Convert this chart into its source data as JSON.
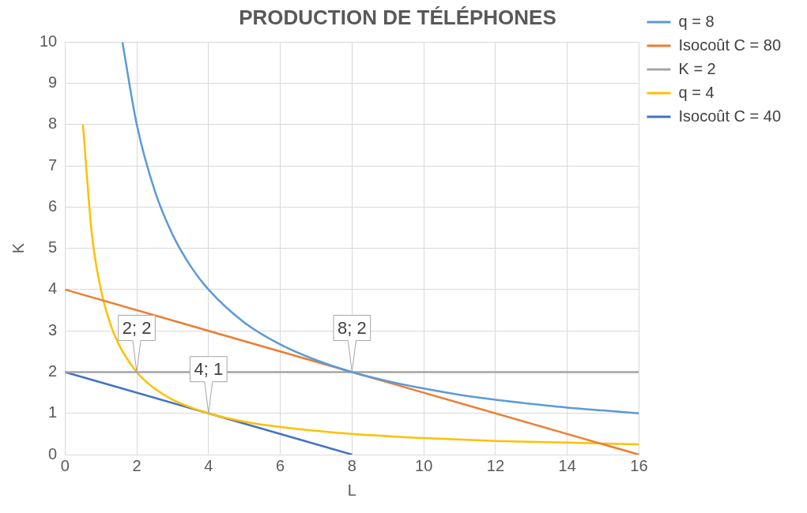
{
  "chart_data": {
    "type": "line",
    "title": "PRODUCTION DE TÉLÉPHONES",
    "xlabel": "L",
    "ylabel": "K",
    "xlim": [
      0,
      16
    ],
    "xticks": [
      0,
      2,
      4,
      6,
      8,
      10,
      12,
      14,
      16
    ],
    "ylim": [
      0,
      10
    ],
    "yticks": [
      0,
      1,
      2,
      3,
      4,
      5,
      6,
      7,
      8,
      9,
      10
    ],
    "grid": true,
    "legend": "top right",
    "marker": "none",
    "line_style": "solid",
    "series": [
      {
        "name": "q = 8",
        "color": "#5b9bd5",
        "x": [
          1.6,
          2,
          2.5,
          3,
          3.5,
          4,
          5,
          6,
          7,
          8,
          9,
          10,
          11,
          12,
          13,
          14,
          15,
          16
        ],
        "values": [
          10,
          8,
          6.4,
          5.33,
          4.57,
          4,
          3.2,
          2.67,
          2.29,
          2,
          1.78,
          1.6,
          1.45,
          1.33,
          1.23,
          1.14,
          1.07,
          1
        ]
      },
      {
        "name": "Isocoût C = 80",
        "color": "#ed7d31",
        "x": [
          0,
          16
        ],
        "values": [
          4,
          0
        ]
      },
      {
        "name": "K = 2",
        "color": "#a5a5a5",
        "x": [
          0,
          16
        ],
        "values": [
          2,
          2
        ]
      },
      {
        "name": "q = 4",
        "color": "#ffc000",
        "x": [
          0.5,
          0.75,
          1,
          1.25,
          1.5,
          2,
          2.5,
          3,
          4,
          5,
          6,
          8,
          10,
          12,
          14,
          16
        ],
        "values": [
          8,
          5.33,
          4,
          3.2,
          2.67,
          2,
          1.6,
          1.33,
          1,
          0.8,
          0.67,
          0.5,
          0.4,
          0.33,
          0.29,
          0.25
        ]
      },
      {
        "name": "Isocoût C = 40",
        "color": "#4472c4",
        "x": [
          0,
          8
        ],
        "values": [
          2,
          0
        ]
      }
    ],
    "annotations": [
      {
        "text": "2; 2",
        "x": 2,
        "y": 2
      },
      {
        "text": "4; 1",
        "x": 4,
        "y": 1
      },
      {
        "text": "8; 2",
        "x": 8,
        "y": 2
      }
    ]
  }
}
